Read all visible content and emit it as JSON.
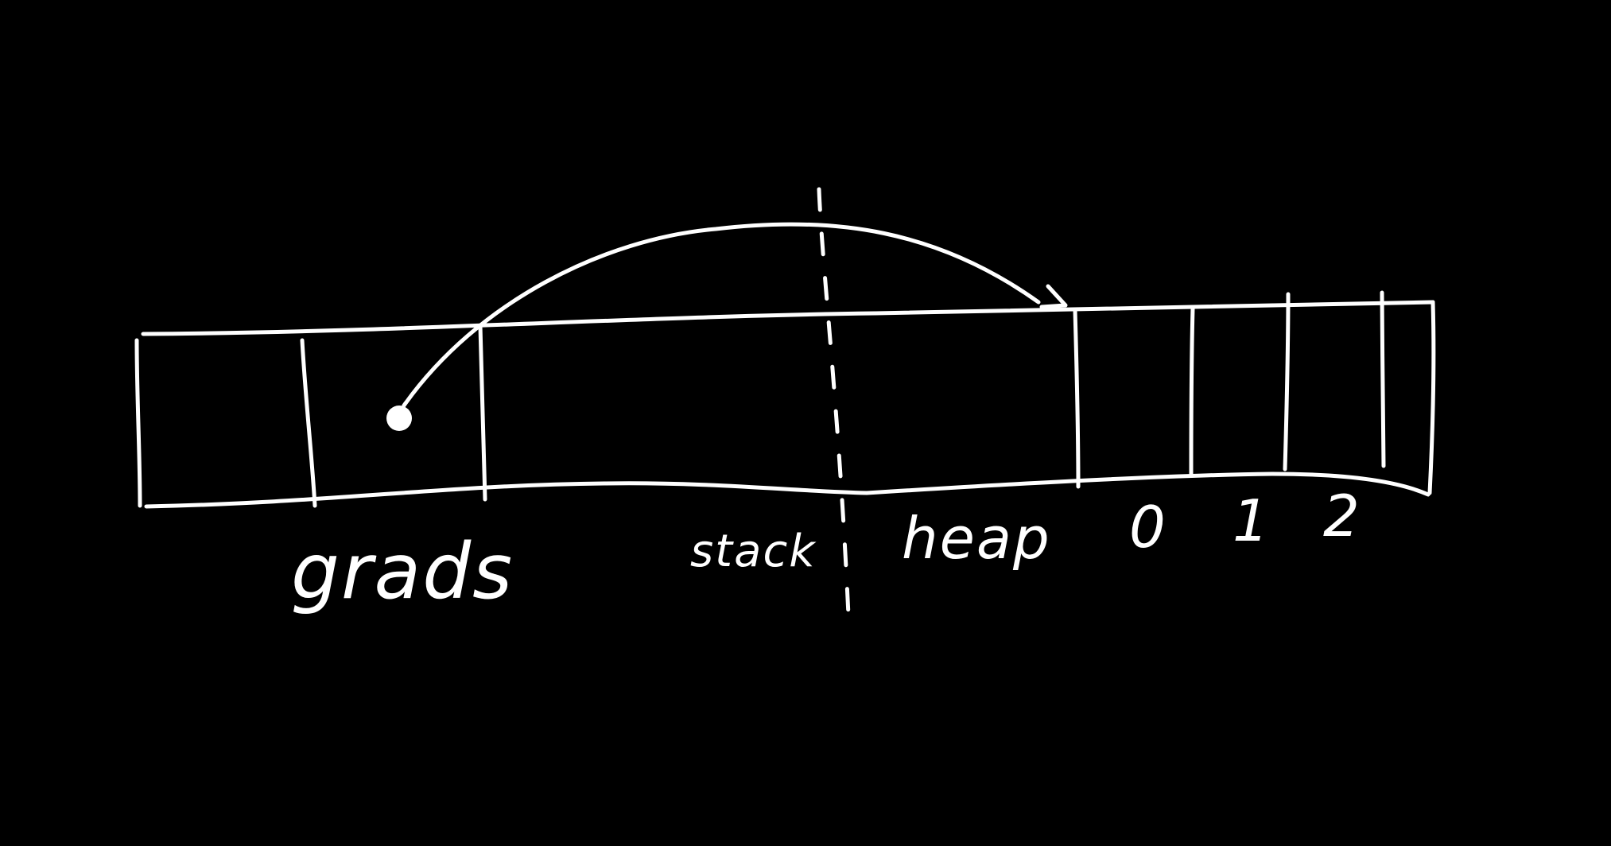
{
  "diagram": {
    "background_color": "#000000",
    "ink_color": "#ffffff",
    "labels": {
      "grads": "grads",
      "stack": "stack",
      "heap": "heap",
      "index_0": "0",
      "index_1": "1",
      "index_2": "2"
    }
  }
}
